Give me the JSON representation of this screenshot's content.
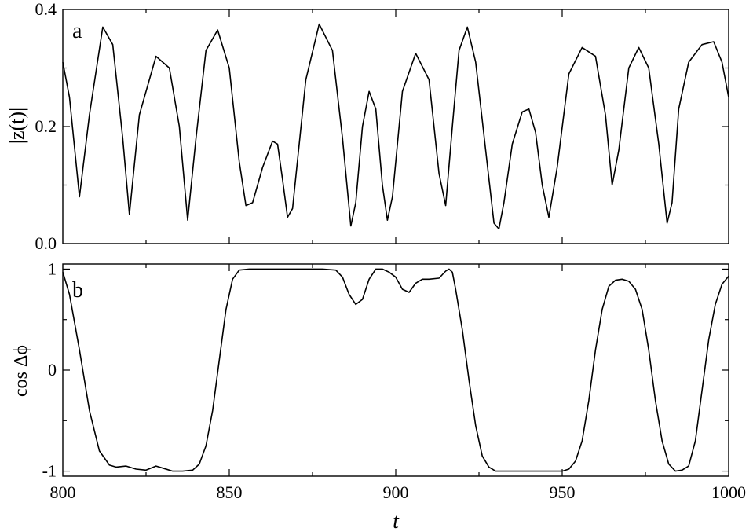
{
  "chart_data": [
    {
      "type": "line",
      "panel_label": "a",
      "ylabel": "|z(t)|",
      "xlim": [
        800,
        1000
      ],
      "ylim": [
        0,
        0.4
      ],
      "yticks": [
        "0.0",
        "0.2",
        "0.4"
      ],
      "ytick_values": [
        0,
        0.2,
        0.4
      ],
      "xticks": [],
      "series": [
        {
          "x": [
            800,
            802,
            805,
            808,
            812,
            815,
            818,
            820,
            823,
            828,
            832,
            835,
            837.5,
            840,
            843,
            846.5,
            850,
            853,
            855,
            857,
            860,
            863,
            864.5,
            866,
            867.5,
            869,
            873,
            877,
            881,
            884,
            886.5,
            888,
            890,
            892,
            894,
            896,
            897.5,
            899,
            902,
            906,
            910,
            913,
            915,
            917,
            919,
            921.5,
            924,
            927,
            929.5,
            931,
            932.5,
            935,
            938,
            940,
            942,
            944,
            946,
            948.5,
            952,
            956,
            960,
            963,
            965,
            967,
            970,
            973,
            976,
            979,
            981.5,
            983,
            985,
            988,
            992,
            995.5,
            998,
            1000
          ],
          "y": [
            0.31,
            0.25,
            0.08,
            0.22,
            0.37,
            0.34,
            0.18,
            0.05,
            0.22,
            0.32,
            0.3,
            0.2,
            0.04,
            0.18,
            0.33,
            0.365,
            0.3,
            0.14,
            0.065,
            0.07,
            0.13,
            0.175,
            0.17,
            0.11,
            0.045,
            0.06,
            0.28,
            0.375,
            0.33,
            0.18,
            0.03,
            0.07,
            0.2,
            0.26,
            0.23,
            0.1,
            0.04,
            0.08,
            0.26,
            0.325,
            0.28,
            0.12,
            0.065,
            0.2,
            0.33,
            0.37,
            0.31,
            0.16,
            0.035,
            0.025,
            0.07,
            0.17,
            0.225,
            0.23,
            0.19,
            0.1,
            0.045,
            0.13,
            0.29,
            0.335,
            0.32,
            0.22,
            0.1,
            0.16,
            0.3,
            0.335,
            0.3,
            0.17,
            0.035,
            0.07,
            0.23,
            0.31,
            0.34,
            0.345,
            0.31,
            0.25
          ]
        }
      ]
    },
    {
      "type": "line",
      "panel_label": "b",
      "ylabel": "cos Δϕ",
      "xlabel": "t",
      "xlim": [
        800,
        1000
      ],
      "ylim": [
        -1.05,
        1.05
      ],
      "yticks": [
        "-1",
        "0",
        "1"
      ],
      "ytick_values": [
        -1,
        0,
        1
      ],
      "xticks": [
        "800",
        "850",
        "900",
        "950",
        "1000"
      ],
      "xtick_values": [
        800,
        850,
        900,
        950,
        1000
      ],
      "series": [
        {
          "x": [
            800,
            802,
            805,
            808,
            811,
            814,
            816,
            819,
            822,
            825,
            828,
            830,
            833,
            836,
            839,
            841,
            843,
            845,
            847,
            849,
            851,
            853,
            856,
            860,
            870,
            878,
            882,
            884,
            886,
            888,
            890,
            892,
            894,
            896,
            898,
            900,
            902,
            904,
            906,
            908,
            910,
            913,
            915,
            916,
            917,
            918,
            920,
            922,
            924,
            926,
            928,
            930,
            932,
            935,
            940,
            945,
            950,
            952,
            954,
            956,
            958,
            960,
            962,
            964,
            966,
            968,
            970,
            972,
            974,
            976,
            978,
            980,
            982,
            984,
            986,
            988,
            990,
            992,
            994,
            996,
            998,
            1000
          ],
          "y": [
            0.97,
            0.75,
            0.2,
            -0.4,
            -0.8,
            -0.94,
            -0.96,
            -0.95,
            -0.98,
            -0.99,
            -0.95,
            -0.97,
            -1.0,
            -1.0,
            -0.99,
            -0.93,
            -0.75,
            -0.4,
            0.1,
            0.6,
            0.9,
            0.99,
            1.0,
            1.0,
            1.0,
            1.0,
            0.99,
            0.92,
            0.75,
            0.65,
            0.7,
            0.9,
            1.0,
            1.0,
            0.97,
            0.92,
            0.8,
            0.77,
            0.86,
            0.9,
            0.9,
            0.91,
            0.98,
            1.0,
            0.97,
            0.8,
            0.4,
            -0.1,
            -0.55,
            -0.85,
            -0.96,
            -1.0,
            -1.0,
            -1.0,
            -1.0,
            -1.0,
            -1.0,
            -0.98,
            -0.9,
            -0.7,
            -0.3,
            0.2,
            0.6,
            0.83,
            0.89,
            0.9,
            0.88,
            0.8,
            0.6,
            0.2,
            -0.3,
            -0.7,
            -0.93,
            -1.0,
            -0.99,
            -0.95,
            -0.7,
            -0.2,
            0.3,
            0.65,
            0.85,
            0.93
          ]
        }
      ]
    }
  ]
}
